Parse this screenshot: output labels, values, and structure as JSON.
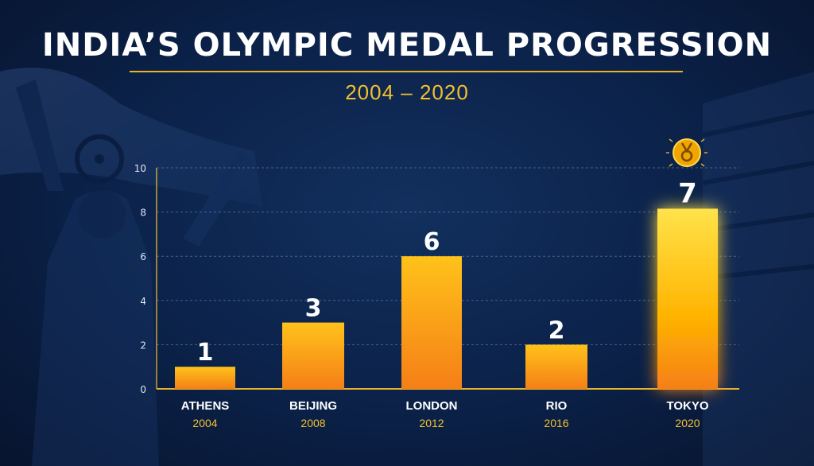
{
  "header": {
    "title": "INDIA’S OLYMPIC MEDAL PROGRESSION",
    "subtitle": "2004 – 2020"
  },
  "icons": {
    "medal": "medal-icon",
    "background": "athlete-with-flag-silhouette"
  },
  "colors": {
    "background": "#0b2148",
    "accent": "#f4c02e",
    "bar_top": "#ffc21a",
    "bar_bottom": "#f57f17",
    "highlight_top": "#ffe34a"
  },
  "chart_data": {
    "type": "bar",
    "title": "INDIA’S OLYMPIC MEDAL PROGRESSION",
    "subtitle": "2004 – 2020",
    "categories": [
      "ATHENS",
      "BEIJING",
      "LONDON",
      "RIO",
      "TOKYO"
    ],
    "years": [
      "2004",
      "2008",
      "2012",
      "2016",
      "2020"
    ],
    "values": [
      1,
      3,
      6,
      2,
      7
    ],
    "data_labels": [
      "1",
      "3",
      "6",
      "2",
      "7"
    ],
    "yticks": [
      "0",
      "2",
      "4",
      "6",
      "8",
      "10"
    ],
    "ylim": [
      0,
      10
    ],
    "xlabel": "",
    "ylabel": "",
    "grid": true,
    "legend": "none",
    "highlight_category": "TOKYO"
  }
}
